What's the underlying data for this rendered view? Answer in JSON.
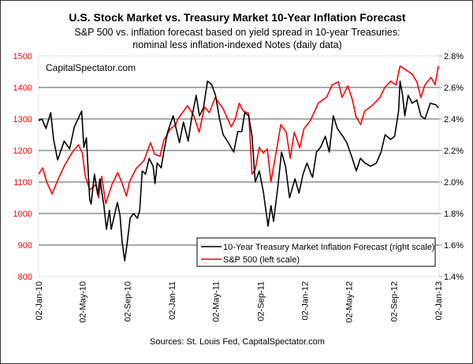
{
  "chart_data": {
    "type": "line",
    "title": "U.S. Stock Market vs. Treasury Market 10-Year Inflation Forecast",
    "subtitle_lines": [
      "S&P 500 vs. inflation forecast based on yield spread in 10-year Treasuries:",
      "nominal less inflation-indexed Notes (daily data)"
    ],
    "watermark": "CapitalSpectator.com",
    "source": "Sources: St. Louis Fed, CapitalSpectator.com",
    "xlim": [
      "2010-01-02",
      "2013-01-04"
    ],
    "x_ticks": [
      "02-Jan-10",
      "02-May-10",
      "02-Sep-10",
      "02-Jan-11",
      "02-May-11",
      "02-Sep-11",
      "02-Jan-12",
      "02-May-12",
      "02-Sep-12",
      "02-Jan-13"
    ],
    "x_tick_dates": [
      "2010-01-02",
      "2010-05-02",
      "2010-09-02",
      "2011-01-02",
      "2011-05-02",
      "2011-09-02",
      "2012-01-02",
      "2012-05-02",
      "2012-09-02",
      "2013-01-02"
    ],
    "y_left": {
      "lim": [
        800,
        1500
      ],
      "ticks": [
        "800",
        "900",
        "1000",
        "1100",
        "1200",
        "1300",
        "1400",
        "1500"
      ],
      "color": "#ff0000"
    },
    "y_right": {
      "lim": [
        1.4,
        2.8
      ],
      "ticks": [
        "1.4%",
        "1.6%",
        "1.8%",
        "2.0%",
        "2.2%",
        "2.4%",
        "2.6%",
        "2.8%"
      ]
    },
    "grid": true,
    "legend_placement": "bottom-right",
    "series": [
      {
        "name": "10-Year Treasury Market Inflation Forecast (right scale)",
        "axis": "right",
        "color": "#000000",
        "points": [
          [
            "2010-01-02",
            2.39
          ],
          [
            "2010-01-11",
            2.4
          ],
          [
            "2010-01-22",
            2.34
          ],
          [
            "2010-02-04",
            2.44
          ],
          [
            "2010-02-12",
            2.27
          ],
          [
            "2010-02-23",
            2.14
          ],
          [
            "2010-03-13",
            2.26
          ],
          [
            "2010-03-28",
            2.21
          ],
          [
            "2010-04-10",
            2.35
          ],
          [
            "2010-04-30",
            2.45
          ],
          [
            "2010-05-06",
            2.22
          ],
          [
            "2010-05-13",
            2.28
          ],
          [
            "2010-05-22",
            1.89
          ],
          [
            "2010-05-26",
            1.86
          ],
          [
            "2010-06-04",
            2.05
          ],
          [
            "2010-06-13",
            1.92
          ],
          [
            "2010-06-19",
            2.02
          ],
          [
            "2010-06-30",
            1.85
          ],
          [
            "2010-07-07",
            1.7
          ],
          [
            "2010-07-15",
            1.82
          ],
          [
            "2010-07-20",
            1.7
          ],
          [
            "2010-08-06",
            1.87
          ],
          [
            "2010-08-13",
            1.79
          ],
          [
            "2010-08-19",
            1.62
          ],
          [
            "2010-08-26",
            1.5
          ],
          [
            "2010-09-01",
            1.6
          ],
          [
            "2010-09-10",
            1.77
          ],
          [
            "2010-09-19",
            1.8
          ],
          [
            "2010-09-30",
            1.77
          ],
          [
            "2010-10-06",
            1.82
          ],
          [
            "2010-10-13",
            2.07
          ],
          [
            "2010-10-22",
            2.05
          ],
          [
            "2010-11-01",
            2.15
          ],
          [
            "2010-11-12",
            2.1
          ],
          [
            "2010-11-17",
            1.99
          ],
          [
            "2010-11-23",
            2.12
          ],
          [
            "2010-12-04",
            2.09
          ],
          [
            "2010-12-11",
            2.19
          ],
          [
            "2010-12-22",
            2.32
          ],
          [
            "2011-01-06",
            2.42
          ],
          [
            "2011-01-23",
            2.25
          ],
          [
            "2011-02-03",
            2.38
          ],
          [
            "2011-02-16",
            2.26
          ],
          [
            "2011-02-25",
            2.4
          ],
          [
            "2011-03-10",
            2.55
          ],
          [
            "2011-03-19",
            2.42
          ],
          [
            "2011-03-30",
            2.47
          ],
          [
            "2011-04-10",
            2.64
          ],
          [
            "2011-04-21",
            2.62
          ],
          [
            "2011-05-02",
            2.55
          ],
          [
            "2011-05-13",
            2.4
          ],
          [
            "2011-05-23",
            2.3
          ],
          [
            "2011-06-06",
            2.25
          ],
          [
            "2011-06-21",
            2.19
          ],
          [
            "2011-07-02",
            2.32
          ],
          [
            "2011-07-13",
            2.32
          ],
          [
            "2011-07-21",
            2.44
          ],
          [
            "2011-08-01",
            2.42
          ],
          [
            "2011-08-10",
            2.29
          ],
          [
            "2011-08-19",
            2.0
          ],
          [
            "2011-08-30",
            2.07
          ],
          [
            "2011-09-10",
            1.94
          ],
          [
            "2011-09-23",
            1.72
          ],
          [
            "2011-10-01",
            1.85
          ],
          [
            "2011-10-08",
            1.75
          ],
          [
            "2011-10-19",
            1.95
          ],
          [
            "2011-10-30",
            2.19
          ],
          [
            "2011-11-10",
            2.1
          ],
          [
            "2011-11-21",
            1.9
          ],
          [
            "2011-12-06",
            2.02
          ],
          [
            "2011-12-17",
            1.93
          ],
          [
            "2011-12-28",
            2.05
          ],
          [
            "2012-01-08",
            2.12
          ],
          [
            "2012-01-19",
            2.05
          ],
          [
            "2012-01-23",
            2.03
          ],
          [
            "2012-02-03",
            2.19
          ],
          [
            "2012-02-14",
            2.22
          ],
          [
            "2012-02-27",
            2.29
          ],
          [
            "2012-03-09",
            2.19
          ],
          [
            "2012-03-20",
            2.42
          ],
          [
            "2012-03-31",
            2.34
          ],
          [
            "2012-04-15",
            2.29
          ],
          [
            "2012-04-26",
            2.25
          ],
          [
            "2012-05-11",
            2.15
          ],
          [
            "2012-05-22",
            2.07
          ],
          [
            "2012-06-02",
            2.15
          ],
          [
            "2012-06-15",
            2.12
          ],
          [
            "2012-06-30",
            2.1
          ],
          [
            "2012-07-16",
            2.12
          ],
          [
            "2012-07-29",
            2.19
          ],
          [
            "2012-08-09",
            2.3
          ],
          [
            "2012-08-24",
            2.27
          ],
          [
            "2012-09-04",
            2.29
          ],
          [
            "2012-09-15",
            2.45
          ],
          [
            "2012-09-19",
            2.64
          ],
          [
            "2012-09-26",
            2.55
          ],
          [
            "2012-10-02",
            2.42
          ],
          [
            "2012-10-11",
            2.55
          ],
          [
            "2012-10-22",
            2.5
          ],
          [
            "2012-11-04",
            2.52
          ],
          [
            "2012-11-15",
            2.42
          ],
          [
            "2012-11-26",
            2.4
          ],
          [
            "2012-12-11",
            2.5
          ],
          [
            "2012-12-26",
            2.49
          ],
          [
            "2013-01-02",
            2.47
          ]
        ]
      },
      {
        "name": "S&P 500 (left scale)",
        "axis": "left",
        "color": "#ff0000",
        "points": [
          [
            "2010-01-02",
            1125
          ],
          [
            "2010-01-13",
            1145
          ],
          [
            "2010-01-24",
            1100
          ],
          [
            "2010-02-08",
            1062
          ],
          [
            "2010-02-23",
            1105
          ],
          [
            "2010-03-13",
            1150
          ],
          [
            "2010-04-03",
            1192
          ],
          [
            "2010-04-21",
            1218
          ],
          [
            "2010-05-02",
            1192
          ],
          [
            "2010-05-10",
            1118
          ],
          [
            "2010-05-22",
            1075
          ],
          [
            "2010-06-08",
            1092
          ],
          [
            "2010-06-15",
            1050
          ],
          [
            "2010-06-24",
            1118
          ],
          [
            "2010-07-05",
            1032
          ],
          [
            "2010-07-22",
            1092
          ],
          [
            "2010-08-07",
            1130
          ],
          [
            "2010-08-20",
            1092
          ],
          [
            "2010-08-31",
            1055
          ],
          [
            "2010-09-08",
            1100
          ],
          [
            "2010-09-26",
            1142
          ],
          [
            "2010-10-18",
            1168
          ],
          [
            "2010-11-05",
            1225
          ],
          [
            "2010-11-16",
            1188
          ],
          [
            "2010-12-01",
            1182
          ],
          [
            "2010-12-11",
            1232
          ],
          [
            "2010-12-29",
            1268
          ],
          [
            "2011-01-13",
            1282
          ],
          [
            "2011-01-19",
            1300
          ],
          [
            "2011-02-14",
            1342
          ],
          [
            "2011-03-03",
            1312
          ],
          [
            "2011-03-18",
            1258
          ],
          [
            "2011-04-02",
            1338
          ],
          [
            "2011-04-15",
            1320
          ],
          [
            "2011-05-01",
            1368
          ],
          [
            "2011-05-23",
            1332
          ],
          [
            "2011-06-14",
            1275
          ],
          [
            "2011-06-25",
            1300
          ],
          [
            "2011-07-06",
            1350
          ],
          [
            "2011-07-17",
            1325
          ],
          [
            "2011-08-01",
            1318
          ],
          [
            "2011-08-10",
            1125
          ],
          [
            "2011-08-19",
            1140
          ],
          [
            "2011-08-30",
            1210
          ],
          [
            "2011-09-10",
            1192
          ],
          [
            "2011-09-21",
            1205
          ],
          [
            "2011-10-01",
            1100
          ],
          [
            "2011-10-16",
            1200
          ],
          [
            "2011-10-28",
            1282
          ],
          [
            "2011-11-12",
            1258
          ],
          [
            "2011-11-23",
            1175
          ],
          [
            "2011-12-04",
            1258
          ],
          [
            "2011-12-19",
            1208
          ],
          [
            "2011-12-30",
            1268
          ],
          [
            "2012-01-17",
            1295
          ],
          [
            "2012-02-08",
            1350
          ],
          [
            "2012-03-02",
            1370
          ],
          [
            "2012-03-17",
            1408
          ],
          [
            "2012-04-03",
            1418
          ],
          [
            "2012-04-13",
            1368
          ],
          [
            "2012-04-29",
            1405
          ],
          [
            "2012-05-12",
            1358
          ],
          [
            "2012-05-21",
            1308
          ],
          [
            "2012-06-03",
            1282
          ],
          [
            "2012-06-14",
            1325
          ],
          [
            "2012-07-04",
            1342
          ],
          [
            "2012-07-26",
            1368
          ],
          [
            "2012-08-08",
            1400
          ],
          [
            "2012-08-24",
            1420
          ],
          [
            "2012-09-08",
            1408
          ],
          [
            "2012-09-19",
            1468
          ],
          [
            "2012-10-02",
            1458
          ],
          [
            "2012-10-22",
            1442
          ],
          [
            "2012-11-04",
            1418
          ],
          [
            "2012-11-15",
            1368
          ],
          [
            "2012-11-26",
            1408
          ],
          [
            "2012-12-13",
            1432
          ],
          [
            "2012-12-24",
            1408
          ],
          [
            "2013-01-02",
            1468
          ]
        ]
      }
    ]
  }
}
